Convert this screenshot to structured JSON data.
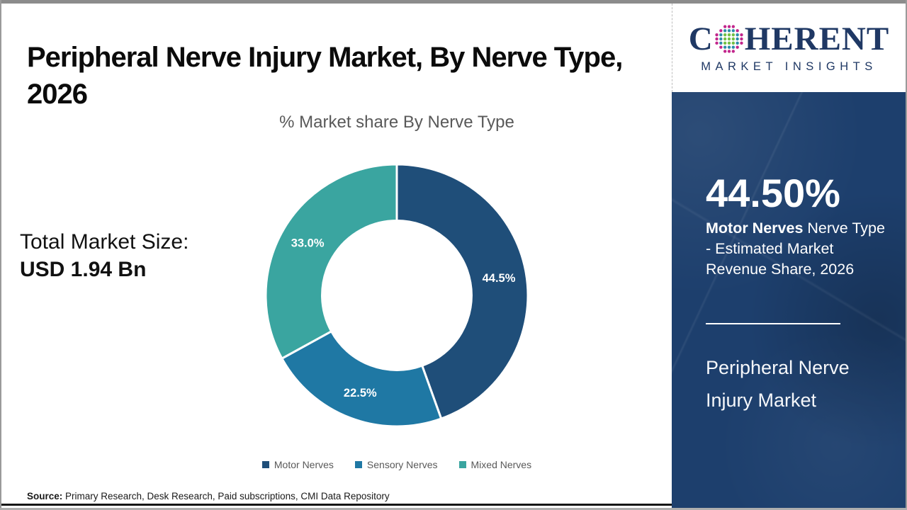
{
  "header": {
    "title": "Peripheral Nerve Injury Market, By Nerve Type, 2026"
  },
  "logo": {
    "prefix": "C",
    "suffix": "HERENT",
    "tagline": "MARKET INSIGHTS",
    "text_color": "#1F3864",
    "globe_colors": {
      "inner": "#72BF44",
      "mid": "#2C8CA8",
      "outer": "#C2268C"
    }
  },
  "left_panel": {
    "total_label": "Total Market Size:",
    "total_value": "USD 1.94 Bn"
  },
  "chart_data": {
    "type": "pie",
    "subtype": "donut",
    "title": "% Market share By Nerve Type",
    "categories": [
      "Motor Nerves",
      "Sensory Nerves",
      "Mixed Nerves"
    ],
    "values": [
      44.5,
      22.5,
      33.0
    ],
    "labels": [
      "44.5%",
      "22.5%",
      "33.0%"
    ],
    "colors": [
      "#1F4E79",
      "#1F78A4",
      "#3AA5A0"
    ],
    "donut_hole_ratio": 0.57,
    "start_angle_deg": 0,
    "direction": "clockwise",
    "legend_position": "bottom",
    "label_color": "#ffffff"
  },
  "sidebar": {
    "bg_color": "#1D3F6D",
    "stat_value": "44.50%",
    "stat_desc_bold": "Motor Nerves",
    "stat_desc_rest": " Nerve Type - Estimated Market Revenue Share, 2026",
    "report_title_line1": "Peripheral Nerve",
    "report_title_line2": "Injury Market"
  },
  "footer": {
    "source_label": "Source:",
    "source_text": " Primary Research, Desk Research, Paid subscriptions, CMI Data Repository"
  }
}
